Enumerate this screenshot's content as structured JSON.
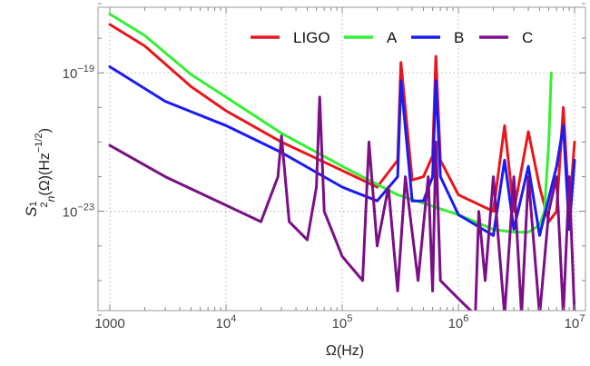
{
  "chart_data": {
    "type": "line",
    "xlabel": "Ω(Hz)",
    "ylabel_parts": [
      "1",
      "S",
      "2",
      "n",
      "(Ω)(Hz",
      "−1/2",
      ")"
    ],
    "x_scale": "log",
    "y_scale": "log",
    "xlim": [
      1000,
      10000000
    ],
    "ylim": [
      1e-26,
      1e-17
    ],
    "x_ticks": [
      {
        "value": 1000,
        "base": "1000",
        "exp": ""
      },
      {
        "value": 10000,
        "base": "10",
        "exp": "4"
      },
      {
        "value": 100000,
        "base": "10",
        "exp": "5"
      },
      {
        "value": 1000000,
        "base": "10",
        "exp": "6"
      },
      {
        "value": 10000000,
        "base": "10",
        "exp": "7"
      }
    ],
    "y_ticks": [
      {
        "value": 1e-19,
        "base": "10",
        "exp": "−19"
      },
      {
        "value": 1e-23,
        "base": "10",
        "exp": "−23"
      }
    ],
    "grid": true,
    "grid_style": "dotted",
    "legend_position": "top-right",
    "series": [
      {
        "name": "LIGO",
        "color": "#e8161d",
        "x": [
          1000,
          2000,
          5000,
          10000,
          30000,
          100000,
          200000,
          300000,
          320000,
          400000,
          500000,
          600000,
          640000,
          700000,
          1000000,
          2000000,
          2500000,
          3000000,
          4000000,
          5000000,
          6000000,
          7000000,
          8000000,
          9000000,
          10000000
        ],
        "y": [
          2.5e-18,
          6e-19,
          4e-20,
          8e-21,
          1e-21,
          1.5e-22,
          5e-23,
          3e-22,
          2e-19,
          8e-23,
          1e-22,
          4e-22,
          3e-19,
          3e-22,
          3e-23,
          1e-23,
          3e-21,
          1e-23,
          2e-21,
          5e-23,
          5e-24,
          1e-23,
          1e-20,
          1e-23,
          1e-21
        ]
      },
      {
        "name": "A",
        "color": "#33f033",
        "x": [
          1000,
          2000,
          5000,
          10000,
          30000,
          100000,
          300000,
          1000000,
          2000000,
          3000000,
          4000000,
          5000000,
          5500000,
          6000000,
          6300000
        ],
        "y": [
          5e-18,
          1.2e-18,
          9e-20,
          2e-20,
          1.8e-21,
          2e-22,
          3e-23,
          8e-24,
          3e-24,
          2.5e-24,
          2.5e-24,
          4e-24,
          1e-23,
          1e-21,
          1e-19
        ]
      },
      {
        "name": "B",
        "color": "#1a1af5",
        "x": [
          1000,
          3000,
          10000,
          30000,
          100000,
          200000,
          300000,
          320000,
          400000,
          500000,
          600000,
          640000,
          700000,
          1000000,
          2000000,
          2500000,
          3000000,
          4000000,
          5000000,
          7000000,
          8000000,
          9000000,
          10000000
        ],
        "y": [
          1.5e-19,
          1.5e-20,
          3e-21,
          5e-22,
          5e-23,
          2e-23,
          1e-22,
          6e-20,
          2e-23,
          2e-23,
          1e-22,
          6e-20,
          1e-22,
          8e-24,
          2e-24,
          3e-22,
          3e-24,
          2e-22,
          2e-24,
          2e-22,
          3e-21,
          3e-24,
          3e-22
        ]
      },
      {
        "name": "C",
        "color": "#7a0f87",
        "x": [
          1000,
          3000,
          10000,
          20000,
          28000,
          30000,
          35000,
          50000,
          60000,
          64000,
          70000,
          100000,
          150000,
          170000,
          200000,
          250000,
          300000,
          350000,
          450000,
          550000,
          600000,
          640000,
          700000,
          1000000,
          1400000,
          1500000,
          1700000,
          2000000,
          2500000,
          3000000,
          3500000,
          4000000,
          5000000,
          6000000,
          7000000,
          8000000,
          9000000,
          10000000
        ],
        "y": [
          8e-22,
          1e-22,
          1.5e-23,
          5e-24,
          1e-22,
          1.5e-21,
          5e-24,
          1.5e-24,
          5e-23,
          2e-20,
          1e-23,
          5e-25,
          1e-25,
          1e-21,
          1e-24,
          5e-23,
          5e-26,
          1e-22,
          1e-25,
          1e-22,
          5e-26,
          1e-21,
          1e-25,
          3e-26,
          1e-26,
          1e-23,
          1e-25,
          1e-22,
          1e-26,
          1e-22,
          1e-26,
          1e-22,
          1e-26,
          1e-23,
          1e-22,
          1e-26,
          1e-22,
          1e-26
        ]
      }
    ]
  }
}
